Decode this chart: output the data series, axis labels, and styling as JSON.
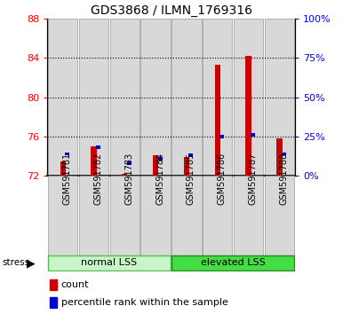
{
  "title": "GDS3868 / ILMN_1769316",
  "samples": [
    "GSM591781",
    "GSM591782",
    "GSM591783",
    "GSM591784",
    "GSM591785",
    "GSM591786",
    "GSM591787",
    "GSM591788"
  ],
  "count_values": [
    73.5,
    75.0,
    72.2,
    74.1,
    73.9,
    83.3,
    84.2,
    75.8
  ],
  "percentile_values": [
    14,
    18,
    8,
    11,
    13,
    25,
    26,
    14
  ],
  "ymin": 72,
  "ymax": 88,
  "yticks": [
    72,
    76,
    80,
    84,
    88
  ],
  "right_yticks": [
    0,
    25,
    50,
    75,
    100
  ],
  "right_ytick_labels": [
    "0%",
    "25%",
    "50%",
    "75%",
    "100%"
  ],
  "groups": [
    {
      "label": "normal LSS",
      "start": 0,
      "end": 4,
      "color": "#c8f5c8",
      "edgecolor": "#55bb55"
    },
    {
      "label": "elevated LSS",
      "start": 4,
      "end": 8,
      "color": "#44dd44",
      "edgecolor": "#228822"
    }
  ],
  "bar_color_count": "#cc0000",
  "bar_color_percentile": "#0000cc",
  "count_base": 72,
  "bg_color": "#d8d8d8",
  "title_fontsize": 10,
  "axis_fontsize": 8,
  "label_fontsize": 7
}
